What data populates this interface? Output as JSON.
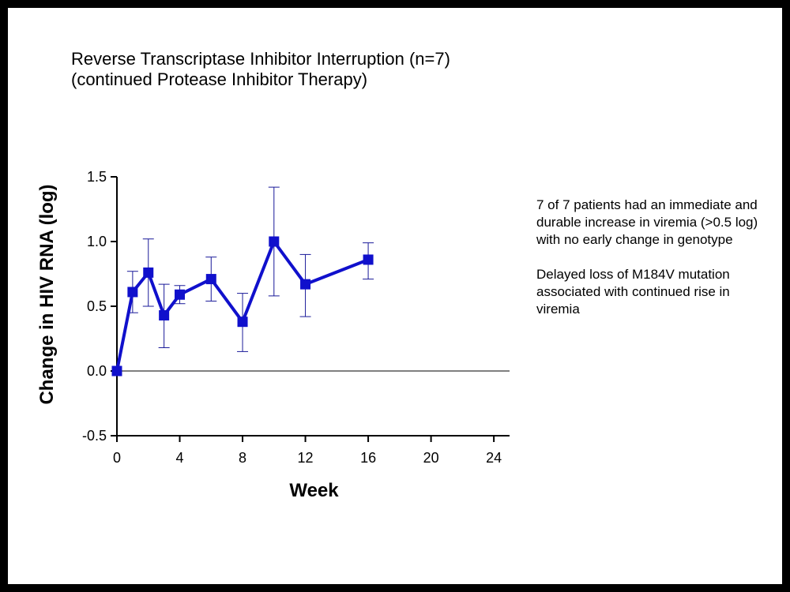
{
  "slide": {
    "title_lines": [
      "Reverse Transcriptase Inhibitor Interruption (n=7)",
      "(continued Protease Inhibitor Therapy)"
    ],
    "notes": [
      "7 of 7 patients had an immediate and durable increase in viremia (>0.5 log) with no early change in genotype",
      "Delayed loss of M184V mutation associated with continued rise in viremia"
    ]
  },
  "chart_data": {
    "type": "line",
    "title": "",
    "xlabel": "Week",
    "ylabel": "Change in HIV RNA (log)",
    "xlim": [
      0,
      25
    ],
    "ylim": [
      -0.5,
      1.5
    ],
    "x_ticks": [
      0,
      4,
      8,
      12,
      16,
      20,
      24
    ],
    "y_ticks": [
      -0.5,
      0.0,
      0.5,
      1.0,
      1.5
    ],
    "y_tick_labels": [
      "-0.5",
      "0.0",
      "0.5",
      "1.0",
      "1.5"
    ],
    "reference_line_y": 0,
    "grid": false,
    "line_color": "#1010cc",
    "error_bar_color": "#1a1a99",
    "series": [
      {
        "x": [
          0,
          1,
          2,
          3,
          4,
          6,
          8,
          10,
          12,
          16
        ],
        "y": [
          0.0,
          0.61,
          0.76,
          0.43,
          0.59,
          0.71,
          0.38,
          1.0,
          0.67,
          0.86
        ],
        "err_low": [
          0.0,
          0.45,
          0.5,
          0.18,
          0.52,
          0.54,
          0.15,
          0.58,
          0.42,
          0.71
        ],
        "err_high": [
          0.0,
          0.77,
          1.02,
          0.67,
          0.66,
          0.88,
          0.6,
          1.42,
          0.9,
          0.99
        ]
      }
    ]
  }
}
